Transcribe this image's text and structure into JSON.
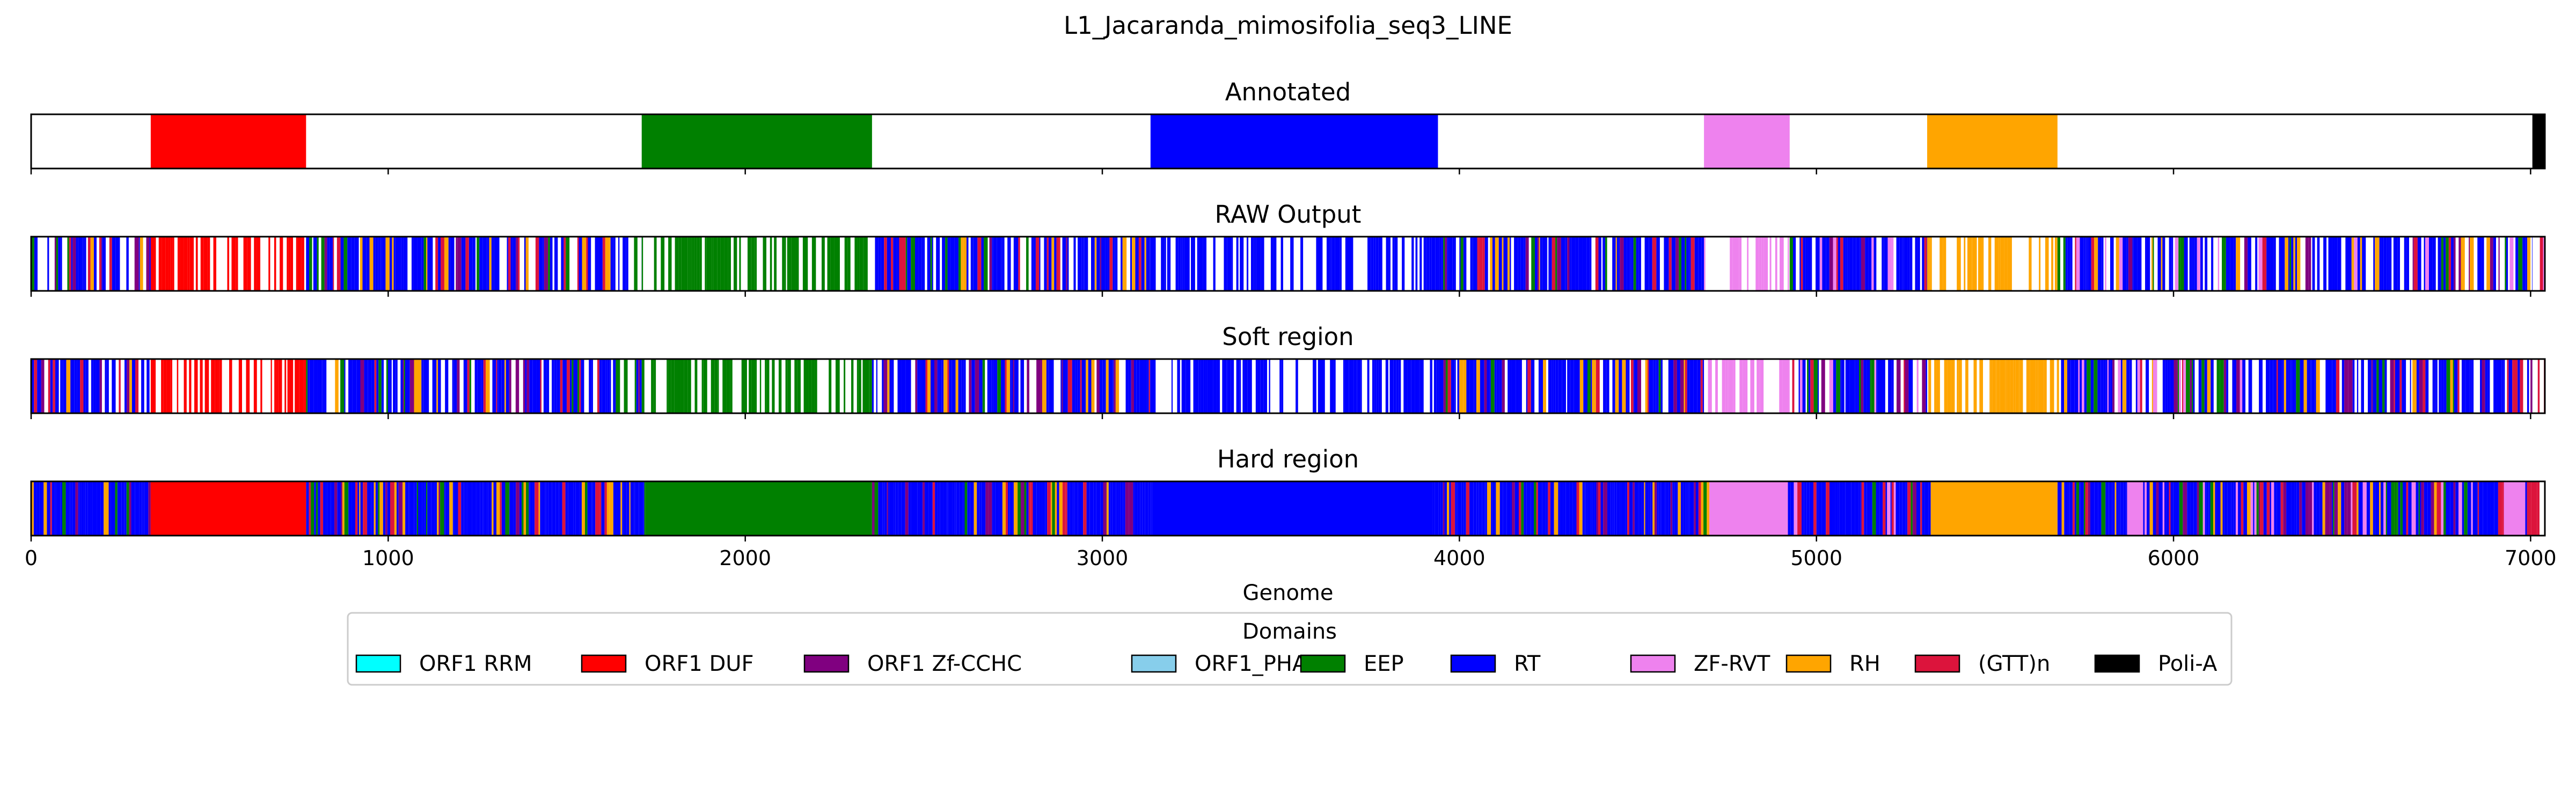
{
  "chart_data": {
    "type": "bar",
    "title": "L1_Jacaranda_mimosifolia_seq3_LINE",
    "xlabel": "Genome",
    "xlim": [
      0,
      7040
    ],
    "xticks": [
      0,
      1000,
      2000,
      3000,
      4000,
      5000,
      6000,
      7000
    ],
    "legend": {
      "title": "Domains",
      "placement": "below",
      "entries": [
        {
          "name": "ORF1 RRM",
          "color": "#00ffff"
        },
        {
          "name": "ORF1 DUF",
          "color": "#ff0000"
        },
        {
          "name": "ORF1 Zf-CCHC",
          "color": "#800080"
        },
        {
          "name": "ORF1_PHA",
          "color": "#87ceeb"
        },
        {
          "name": "EEP",
          "color": "#008000"
        },
        {
          "name": "RT",
          "color": "#0000ff"
        },
        {
          "name": "ZF-RVT",
          "color": "#ee82ee"
        },
        {
          "name": "RH",
          "color": "#ffa500"
        },
        {
          "name": "(GTT)n",
          "color": "#dc143c"
        },
        {
          "name": "Poli-A",
          "color": "#000000"
        }
      ]
    },
    "tracks": [
      {
        "title": "Annotated",
        "segments": [
          {
            "domain": "ORF1 DUF",
            "start": 335,
            "end": 770
          },
          {
            "domain": "EEP",
            "start": 1710,
            "end": 2355
          },
          {
            "domain": "RT",
            "start": 3135,
            "end": 3940
          },
          {
            "domain": "ZF-RVT",
            "start": 4685,
            "end": 4925
          },
          {
            "domain": "RH",
            "start": 5310,
            "end": 5675
          },
          {
            "domain": "Poli-A",
            "start": 7005,
            "end": 7040
          }
        ]
      },
      {
        "title": "RAW Output",
        "dense_regions": [
          {
            "start": 0,
            "end": 335,
            "palette": [
              "RT",
              "ORF1 Zf-CCHC",
              "RH",
              "(GTT)n",
              "EEP"
            ],
            "density": 0.7
          },
          {
            "start": 335,
            "end": 770,
            "palette": [
              "ORF1 DUF"
            ],
            "density": 0.55
          },
          {
            "start": 770,
            "end": 1710,
            "palette": [
              "RT",
              "ORF1 Zf-CCHC",
              "EEP",
              "RH",
              "(GTT)n"
            ],
            "density": 0.8
          },
          {
            "start": 1710,
            "end": 2355,
            "palette": [
              "EEP"
            ],
            "density": 0.6
          },
          {
            "start": 2355,
            "end": 3135,
            "palette": [
              "RT",
              "ORF1 Zf-CCHC",
              "EEP",
              "RH",
              "(GTT)n"
            ],
            "density": 0.8
          },
          {
            "start": 3135,
            "end": 3940,
            "palette": [
              "RT"
            ],
            "density": 0.6
          },
          {
            "start": 3940,
            "end": 4685,
            "palette": [
              "RT",
              "ORF1 Zf-CCHC",
              "EEP",
              "RH",
              "(GTT)n"
            ],
            "density": 0.85
          },
          {
            "start": 4685,
            "end": 4925,
            "palette": [
              "ZF-RVT"
            ],
            "density": 0.5
          },
          {
            "start": 4925,
            "end": 5310,
            "palette": [
              "RT",
              "EEP",
              "ORF1 Zf-CCHC",
              "(GTT)n",
              "ZF-RVT"
            ],
            "density": 0.8
          },
          {
            "start": 5310,
            "end": 5675,
            "palette": [
              "RH"
            ],
            "density": 0.6
          },
          {
            "start": 5675,
            "end": 7005,
            "palette": [
              "RT",
              "EEP",
              "(GTT)n",
              "ORF1 Zf-CCHC",
              "ZF-RVT",
              "RH"
            ],
            "density": 0.8
          },
          {
            "start": 7005,
            "end": 7040,
            "palette": [
              "(GTT)n",
              "ZF-RVT"
            ],
            "density": 0.4
          }
        ]
      },
      {
        "title": "Soft region",
        "dense_regions": [
          {
            "start": 0,
            "end": 335,
            "palette": [
              "RT",
              "ORF1 Zf-CCHC",
              "RH",
              "(GTT)n",
              "EEP"
            ],
            "density": 0.7
          },
          {
            "start": 335,
            "end": 770,
            "palette": [
              "ORF1 DUF"
            ],
            "density": 0.55
          },
          {
            "start": 770,
            "end": 1710,
            "palette": [
              "RT",
              "ORF1 Zf-CCHC",
              "EEP",
              "RH",
              "(GTT)n"
            ],
            "density": 0.8
          },
          {
            "start": 1710,
            "end": 2355,
            "palette": [
              "EEP"
            ],
            "density": 0.6
          },
          {
            "start": 2355,
            "end": 3135,
            "palette": [
              "RT",
              "ORF1 Zf-CCHC",
              "EEP",
              "RH",
              "(GTT)n"
            ],
            "density": 0.8
          },
          {
            "start": 3135,
            "end": 3940,
            "palette": [
              "RT"
            ],
            "density": 0.6
          },
          {
            "start": 3940,
            "end": 4685,
            "palette": [
              "RT",
              "ORF1 Zf-CCHC",
              "EEP",
              "RH",
              "(GTT)n"
            ],
            "density": 0.85
          },
          {
            "start": 4685,
            "end": 4925,
            "palette": [
              "ZF-RVT"
            ],
            "density": 0.5
          },
          {
            "start": 4925,
            "end": 5310,
            "palette": [
              "RT",
              "EEP",
              "ORF1 Zf-CCHC",
              "(GTT)n",
              "ZF-RVT"
            ],
            "density": 0.8
          },
          {
            "start": 5310,
            "end": 5675,
            "palette": [
              "RH"
            ],
            "density": 0.6
          },
          {
            "start": 5675,
            "end": 7005,
            "palette": [
              "RT",
              "EEP",
              "(GTT)n",
              "ORF1 Zf-CCHC",
              "ZF-RVT",
              "RH"
            ],
            "density": 0.8
          },
          {
            "start": 7005,
            "end": 7040,
            "palette": [
              "(GTT)n",
              "ZF-RVT"
            ],
            "density": 0.4
          }
        ]
      },
      {
        "title": "Hard region",
        "segments": [
          {
            "domain": "ORF1 DUF",
            "start": 335,
            "end": 770
          },
          {
            "domain": "EEP",
            "start": 1720,
            "end": 2355
          },
          {
            "domain": "RT",
            "start": 3140,
            "end": 3925
          },
          {
            "domain": "ZF-RVT",
            "start": 4700,
            "end": 4920
          },
          {
            "domain": "RH",
            "start": 5320,
            "end": 5675
          },
          {
            "domain": "ZF-RVT",
            "start": 5870,
            "end": 5915
          },
          {
            "domain": "ZF-RVT",
            "start": 6925,
            "end": 6985
          }
        ],
        "dense_regions": [
          {
            "start": 0,
            "end": 335,
            "palette": [
              "RT",
              "ORF1 Zf-CCHC",
              "RH",
              "(GTT)n",
              "EEP"
            ],
            "density": 1.0
          },
          {
            "start": 770,
            "end": 1720,
            "palette": [
              "RT",
              "ORF1 Zf-CCHC",
              "EEP",
              "RH",
              "(GTT)n"
            ],
            "density": 1.0
          },
          {
            "start": 2355,
            "end": 3140,
            "palette": [
              "RT",
              "ORF1 Zf-CCHC",
              "EEP",
              "RH",
              "(GTT)n"
            ],
            "density": 1.0
          },
          {
            "start": 3925,
            "end": 4700,
            "palette": [
              "RT",
              "ORF1 Zf-CCHC",
              "EEP",
              "RH",
              "(GTT)n"
            ],
            "density": 1.0
          },
          {
            "start": 4920,
            "end": 5320,
            "palette": [
              "RT",
              "EEP",
              "ORF1 Zf-CCHC",
              "(GTT)n",
              "ZF-RVT"
            ],
            "density": 1.0
          },
          {
            "start": 5675,
            "end": 5870,
            "palette": [
              "RT",
              "EEP",
              "(GTT)n",
              "ORF1 Zf-CCHC",
              "RH"
            ],
            "density": 1.0
          },
          {
            "start": 5915,
            "end": 6925,
            "palette": [
              "RT",
              "EEP",
              "(GTT)n",
              "ORF1 Zf-CCHC",
              "ZF-RVT",
              "RH"
            ],
            "density": 1.0
          },
          {
            "start": 6985,
            "end": 7025,
            "palette": [
              "(GTT)n",
              "ZF-RVT",
              "RT"
            ],
            "density": 1.0
          }
        ]
      }
    ]
  }
}
